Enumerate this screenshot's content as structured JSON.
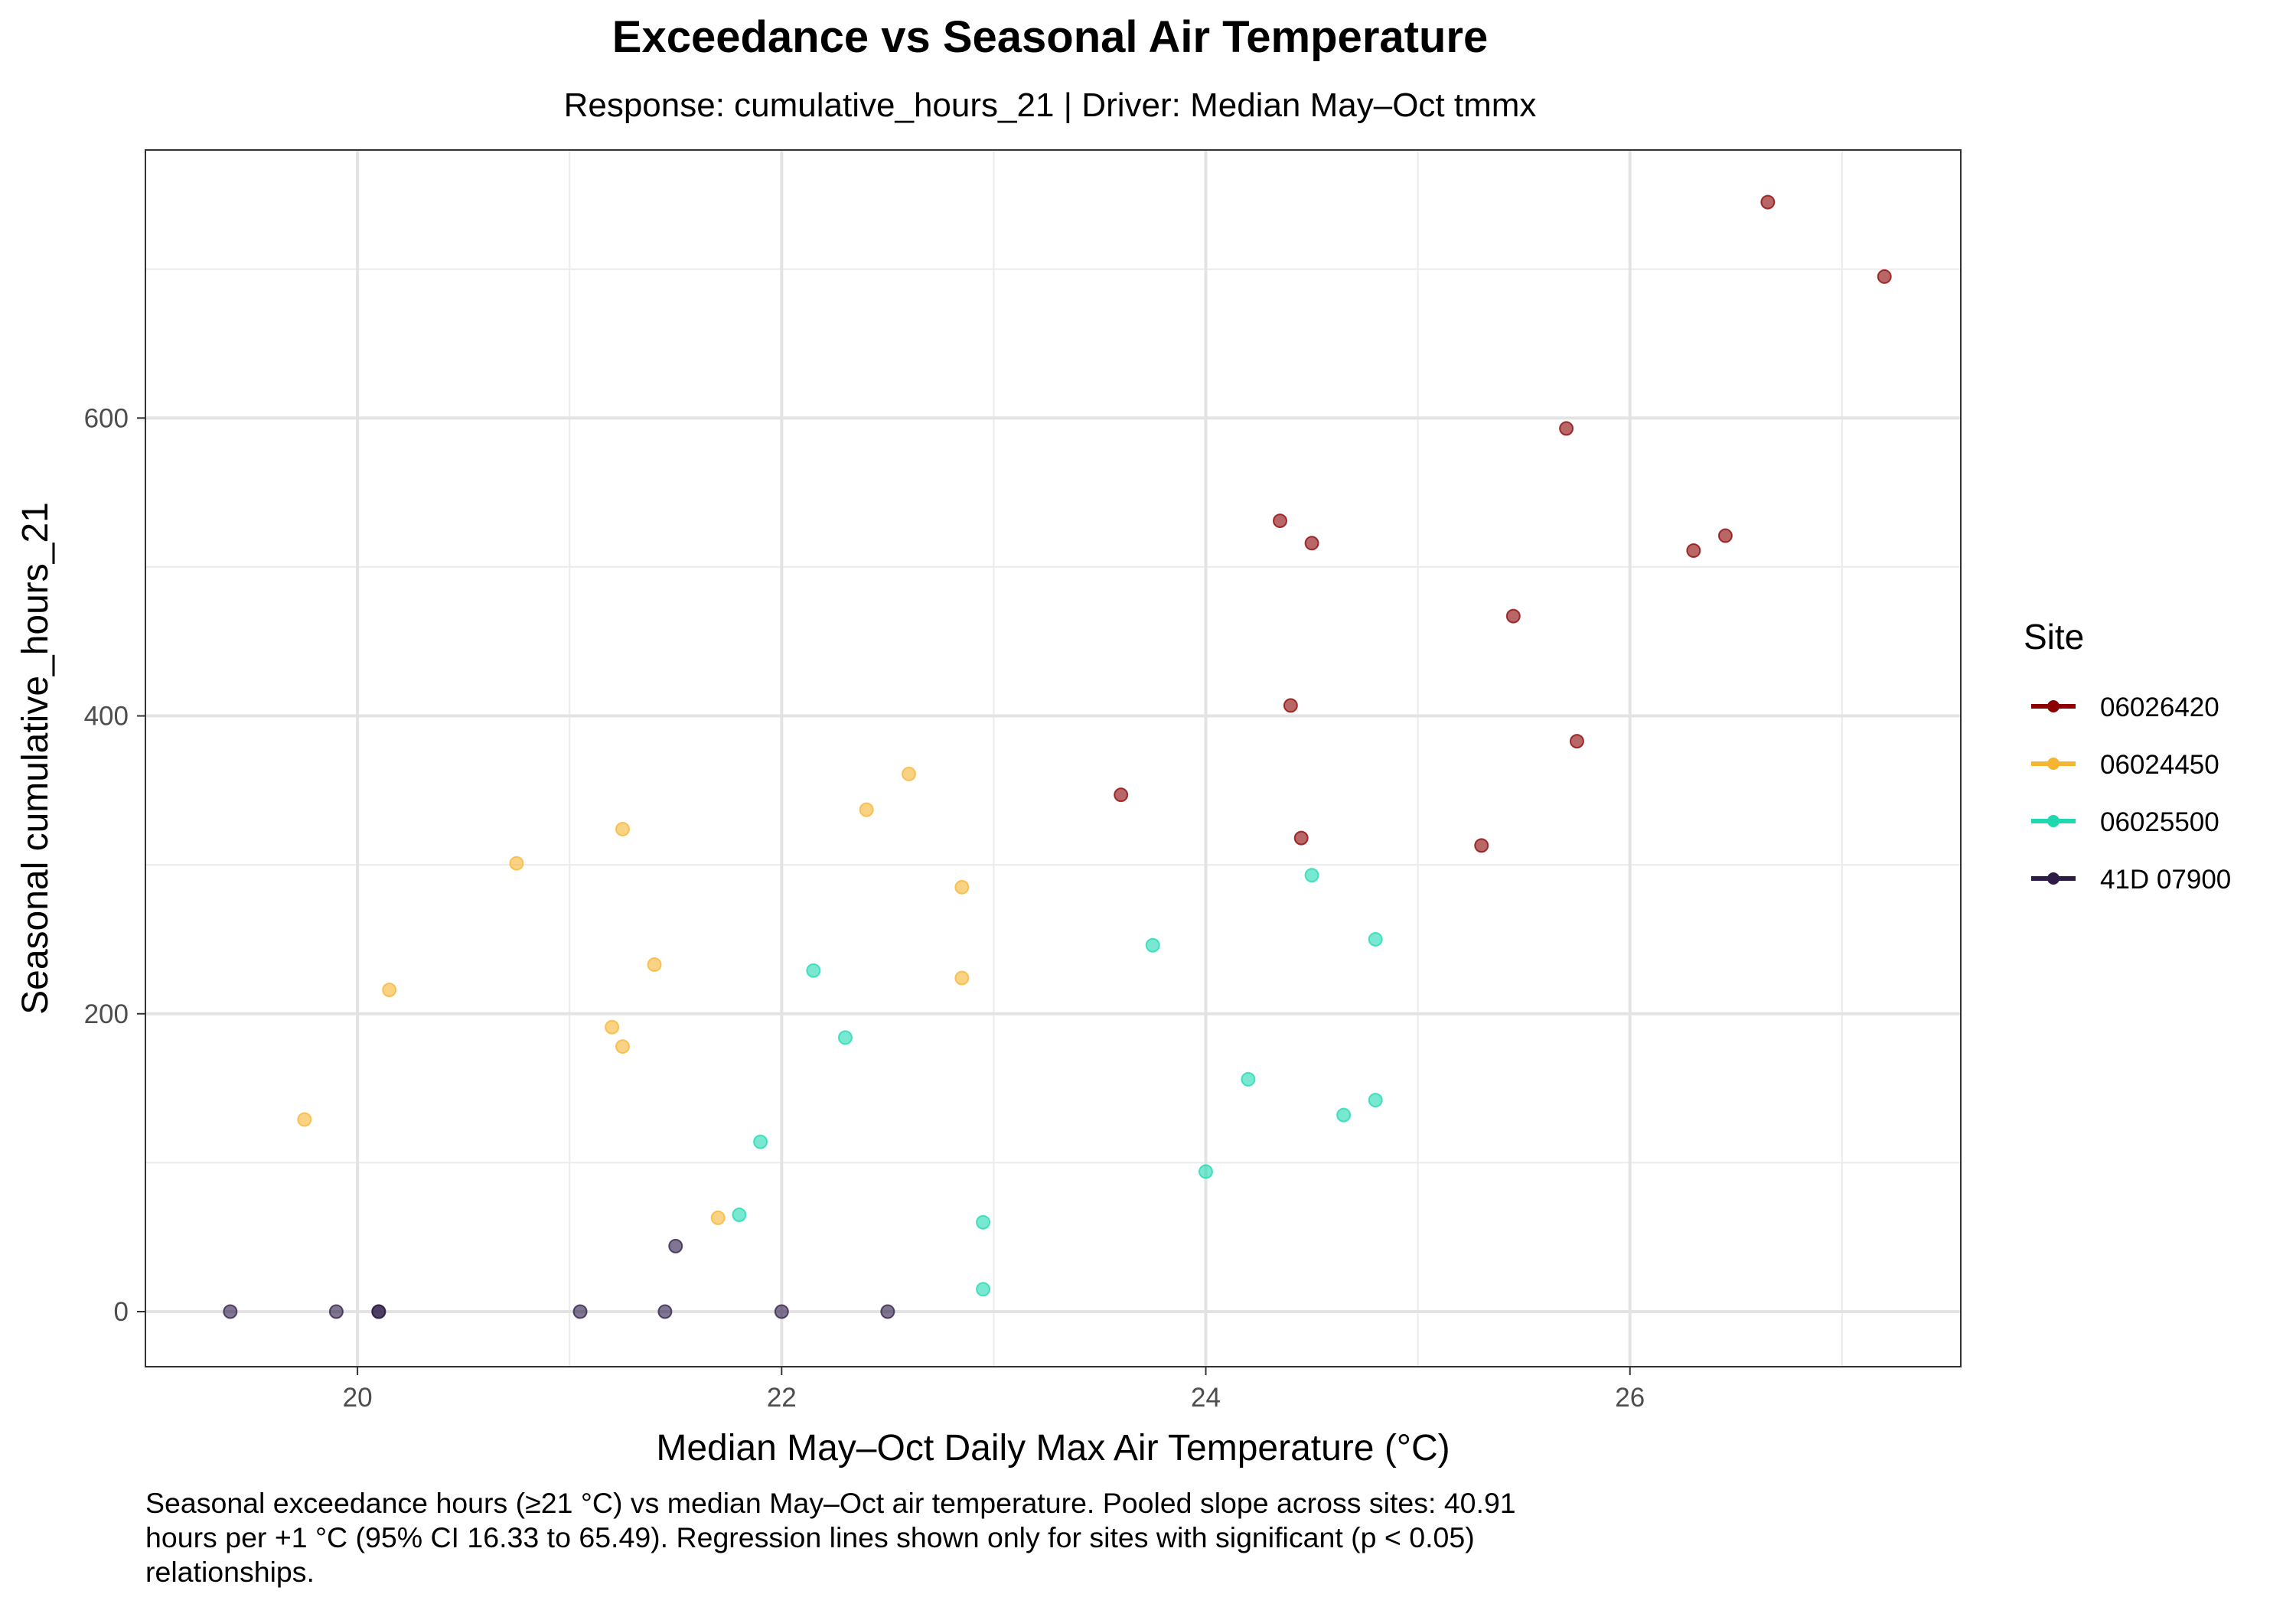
{
  "chart_data": {
    "type": "scatter",
    "title": "Exceedance vs Seasonal Air Temperature",
    "subtitle": "Response: cumulative_hours_21 | Driver: Median May–Oct tmmx",
    "xlabel": "Median May–Oct Daily Max Air Temperature (°C)",
    "ylabel": "Seasonal cumulative_hours_21",
    "xlim": [
      19.0,
      27.56
    ],
    "ylim": [
      -37,
      780
    ],
    "x_ticks": [
      20,
      22,
      24,
      26
    ],
    "y_ticks": [
      0,
      200,
      400,
      600
    ],
    "x_tick_labels": [
      "20",
      "22",
      "24",
      "26"
    ],
    "y_tick_labels": [
      "0",
      "200",
      "400",
      "600"
    ],
    "grid": true,
    "legend_title": "Site",
    "legend_position": "right",
    "series": [
      {
        "name": "06026420",
        "color": "#8B0000",
        "points": [
          [
            26.65,
            745
          ],
          [
            27.2,
            695
          ],
          [
            25.7,
            593
          ],
          [
            24.35,
            531
          ],
          [
            24.5,
            516
          ],
          [
            26.45,
            521
          ],
          [
            26.3,
            511
          ],
          [
            25.45,
            467
          ],
          [
            24.4,
            407
          ],
          [
            25.75,
            383
          ],
          [
            23.6,
            347
          ],
          [
            24.45,
            318
          ],
          [
            25.3,
            313
          ]
        ]
      },
      {
        "name": "06024450",
        "color": "#F5B431",
        "points": [
          [
            22.6,
            361
          ],
          [
            22.4,
            337
          ],
          [
            21.25,
            324
          ],
          [
            20.75,
            301
          ],
          [
            22.85,
            285
          ],
          [
            21.4,
            233
          ],
          [
            22.85,
            224
          ],
          [
            20.15,
            216
          ],
          [
            21.2,
            191
          ],
          [
            21.25,
            178
          ],
          [
            19.75,
            129
          ],
          [
            21.7,
            63
          ]
        ]
      },
      {
        "name": "06025500",
        "color": "#1ED8B0",
        "points": [
          [
            24.5,
            293
          ],
          [
            24.8,
            250
          ],
          [
            23.75,
            246
          ],
          [
            22.15,
            229
          ],
          [
            22.3,
            184
          ],
          [
            24.2,
            156
          ],
          [
            24.8,
            142
          ],
          [
            24.65,
            132
          ],
          [
            21.9,
            114
          ],
          [
            24.0,
            94
          ],
          [
            21.8,
            65
          ],
          [
            22.95,
            60
          ],
          [
            22.95,
            15
          ]
        ]
      },
      {
        "name": "41D 07900",
        "color": "#2D1B47",
        "points": [
          [
            21.5,
            44
          ],
          [
            19.4,
            0
          ],
          [
            19.9,
            0
          ],
          [
            20.1,
            0
          ],
          [
            20.1,
            0
          ],
          [
            21.05,
            0
          ],
          [
            21.45,
            0
          ],
          [
            22.0,
            0
          ],
          [
            22.5,
            0
          ]
        ]
      }
    ]
  },
  "caption": {
    "lines": [
      "Seasonal exceedance hours (≥21 °C) vs median May–Oct air temperature. Pooled slope across sites: 40.91",
      "hours per +1 °C (95% CI 16.33 to 65.49). Regression lines shown only for sites with significant (p < 0.05)",
      "relationships."
    ]
  }
}
